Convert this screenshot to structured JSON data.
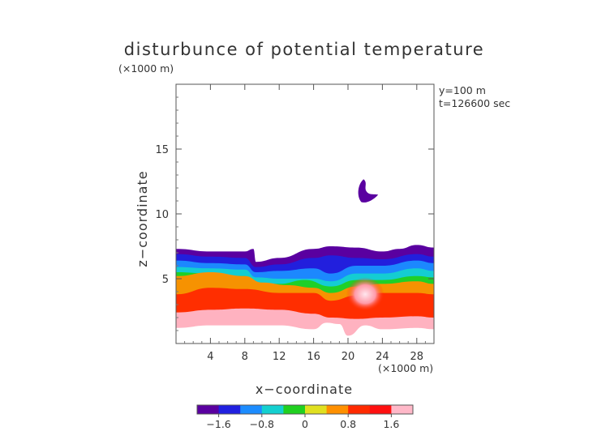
{
  "chart_data": {
    "type": "heatmap",
    "title": "disturbunce of potential temperature",
    "scale_note": "(×1000 m)",
    "info_lines": [
      "y=100 m",
      "t=126600 sec"
    ],
    "xlabel": "x−coordinate",
    "ylabel": "z−coordinate",
    "x_unit": "(×1000 m)",
    "xlim": [
      0,
      30
    ],
    "ylim": [
      0,
      20
    ],
    "x_ticks": [
      4,
      8,
      12,
      16,
      20,
      24,
      28
    ],
    "y_ticks": [
      5,
      10,
      15
    ],
    "colorbar": {
      "min": -2.0,
      "max": 2.0,
      "tick_values": [
        -1.6,
        -0.8,
        0,
        0.8,
        1.6
      ],
      "tick_labels": [
        "−1.6",
        "−0.8",
        "0",
        "0.8",
        "1.6"
      ],
      "colors": [
        "#5a00a0",
        "#2020e0",
        "#1c8cff",
        "#14d0d0",
        "#20d020",
        "#e0e020",
        "#ff9000",
        "#ff2a00",
        "#ff1010",
        "#ffb8c8"
      ]
    },
    "layer_top_z": [
      [
        0,
        7.3
      ],
      [
        4,
        7.1
      ],
      [
        8,
        7.1
      ],
      [
        9,
        7.3
      ],
      [
        9.3,
        6.3
      ],
      [
        12,
        6.6
      ],
      [
        16,
        7.3
      ],
      [
        18,
        7.5
      ],
      [
        21,
        7.4
      ],
      [
        24,
        7.1
      ],
      [
        26,
        7.3
      ],
      [
        28,
        7.6
      ],
      [
        30,
        7.4
      ]
    ],
    "bands": [
      {
        "color_index": 1,
        "top": [
          [
            0,
            6.9
          ],
          [
            4,
            6.7
          ],
          [
            8,
            6.6
          ],
          [
            9.3,
            5.9
          ],
          [
            12,
            6.1
          ],
          [
            16,
            6.6
          ],
          [
            18,
            6.8
          ],
          [
            21,
            6.6
          ],
          [
            24,
            6.5
          ],
          [
            28,
            6.9
          ],
          [
            30,
            6.7
          ]
        ]
      },
      {
        "color_index": 2,
        "top": [
          [
            0,
            6.4
          ],
          [
            4,
            6.2
          ],
          [
            8,
            6.1
          ],
          [
            9.3,
            5.5
          ],
          [
            12,
            5.6
          ],
          [
            16,
            5.8
          ],
          [
            18,
            5.4
          ],
          [
            21,
            6.0
          ],
          [
            24,
            6.0
          ],
          [
            28,
            6.4
          ],
          [
            30,
            6.2
          ]
        ]
      },
      {
        "color_index": 3,
        "top": [
          [
            0,
            5.9
          ],
          [
            4,
            5.8
          ],
          [
            8,
            5.7
          ],
          [
            9.3,
            5.1
          ],
          [
            12,
            5.0
          ],
          [
            16,
            5.0
          ],
          [
            18,
            4.8
          ],
          [
            21,
            5.4
          ],
          [
            24,
            5.4
          ],
          [
            28,
            5.8
          ],
          [
            30,
            5.6
          ]
        ]
      },
      {
        "color_index": 4,
        "top": [
          [
            0,
            5.5
          ],
          [
            4,
            5.4
          ],
          [
            8,
            5.2
          ],
          [
            9.3,
            4.7
          ],
          [
            12,
            4.6
          ],
          [
            15,
            4.9
          ],
          [
            18,
            4.4
          ],
          [
            21,
            4.9
          ],
          [
            24,
            4.9
          ],
          [
            28,
            5.2
          ],
          [
            30,
            5.1
          ]
        ]
      },
      {
        "color_index": 6,
        "top": [
          [
            0,
            5.2
          ],
          [
            4,
            5.5
          ],
          [
            8,
            5.2
          ],
          [
            10,
            4.7
          ],
          [
            13,
            4.5
          ],
          [
            16,
            4.3
          ],
          [
            18,
            3.9
          ],
          [
            21,
            4.4
          ],
          [
            24,
            4.6
          ],
          [
            28,
            4.8
          ],
          [
            30,
            4.6
          ]
        ]
      },
      {
        "color_index": 7,
        "top": [
          [
            0,
            3.8
          ],
          [
            4,
            4.3
          ],
          [
            8,
            4.2
          ],
          [
            12,
            3.9
          ],
          [
            16,
            3.9
          ],
          [
            18,
            3.3
          ],
          [
            21,
            3.7
          ],
          [
            24,
            3.9
          ],
          [
            28,
            3.9
          ],
          [
            30,
            3.8
          ]
        ]
      },
      {
        "color_index": 9,
        "top": [
          [
            0,
            2.4
          ],
          [
            4,
            2.6
          ],
          [
            8,
            2.7
          ],
          [
            12,
            2.6
          ],
          [
            16,
            2.3
          ],
          [
            18,
            2.0
          ],
          [
            21,
            1.9
          ],
          [
            24,
            2.0
          ],
          [
            28,
            2.1
          ],
          [
            30,
            2.0
          ]
        ]
      }
    ],
    "surface_bottom_z": [
      [
        0,
        1.2
      ],
      [
        4,
        1.4
      ],
      [
        8,
        1.4
      ],
      [
        12,
        1.4
      ],
      [
        16,
        1.1
      ],
      [
        17.5,
        1.6
      ],
      [
        19,
        1.5
      ],
      [
        20,
        0.6
      ],
      [
        22,
        1.4
      ],
      [
        24,
        1.1
      ],
      [
        28,
        1.2
      ],
      [
        30,
        1.1
      ]
    ],
    "warm_spot": {
      "x": 22,
      "z": 3.8,
      "rx": 2.2,
      "rz": 1.3
    },
    "anomaly_blob": {
      "x": 22.0,
      "z": 11.3,
      "color_index": 0
    }
  }
}
